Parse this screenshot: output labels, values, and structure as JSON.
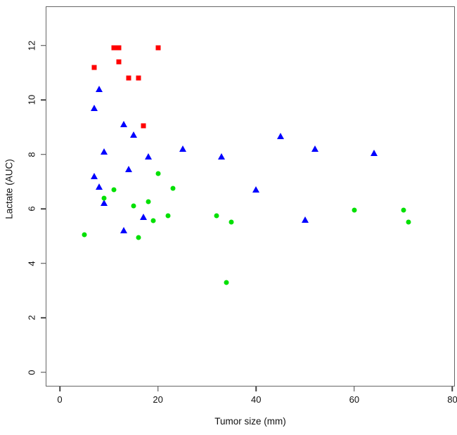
{
  "chart_data": {
    "type": "scatter",
    "title": "",
    "xlabel": "Tumor size (mm)",
    "ylabel": "Lactate (AUC)",
    "xlim": [
      -2.9,
      80.5
    ],
    "ylim": [
      -0.5,
      13.4
    ],
    "x_ticks": [
      0,
      20,
      40,
      60,
      80
    ],
    "y_ticks": [
      0,
      2,
      4,
      6,
      8,
      10,
      12
    ],
    "grid": false,
    "legend": "none",
    "series": [
      {
        "name": "red-squares",
        "marker": "square",
        "color": "#FF0000",
        "points": [
          [
            7,
            11.2
          ],
          [
            11,
            11.9
          ],
          [
            12,
            11.9
          ],
          [
            12,
            11.4
          ],
          [
            14,
            10.8
          ],
          [
            16,
            10.8
          ],
          [
            17,
            9.05
          ],
          [
            20,
            11.9
          ]
        ]
      },
      {
        "name": "blue-triangles",
        "marker": "triangle",
        "color": "#0000FF",
        "points": [
          [
            7,
            9.7
          ],
          [
            7,
            7.2
          ],
          [
            8,
            10.4
          ],
          [
            8,
            6.8
          ],
          [
            9,
            8.1
          ],
          [
            9,
            6.2
          ],
          [
            13,
            9.1
          ],
          [
            13,
            5.2
          ],
          [
            14,
            7.45
          ],
          [
            15,
            8.7
          ],
          [
            17,
            5.7
          ],
          [
            18,
            7.9
          ],
          [
            25,
            8.2
          ],
          [
            33,
            7.9
          ],
          [
            40,
            6.7
          ],
          [
            45,
            8.65
          ],
          [
            50,
            5.6
          ],
          [
            52,
            8.2
          ],
          [
            64,
            8.05
          ]
        ]
      },
      {
        "name": "green-circles",
        "marker": "circle",
        "color": "#00E000",
        "points": [
          [
            5,
            5.05
          ],
          [
            9,
            6.4
          ],
          [
            11,
            6.7
          ],
          [
            15,
            6.1
          ],
          [
            16,
            4.95
          ],
          [
            18,
            6.25
          ],
          [
            19,
            5.55
          ],
          [
            20,
            7.3
          ],
          [
            22,
            5.75
          ],
          [
            23,
            6.75
          ],
          [
            32,
            5.75
          ],
          [
            34,
            3.3
          ],
          [
            35,
            5.5
          ],
          [
            60,
            5.95
          ],
          [
            70,
            5.95
          ],
          [
            71,
            5.5
          ]
        ]
      }
    ]
  }
}
